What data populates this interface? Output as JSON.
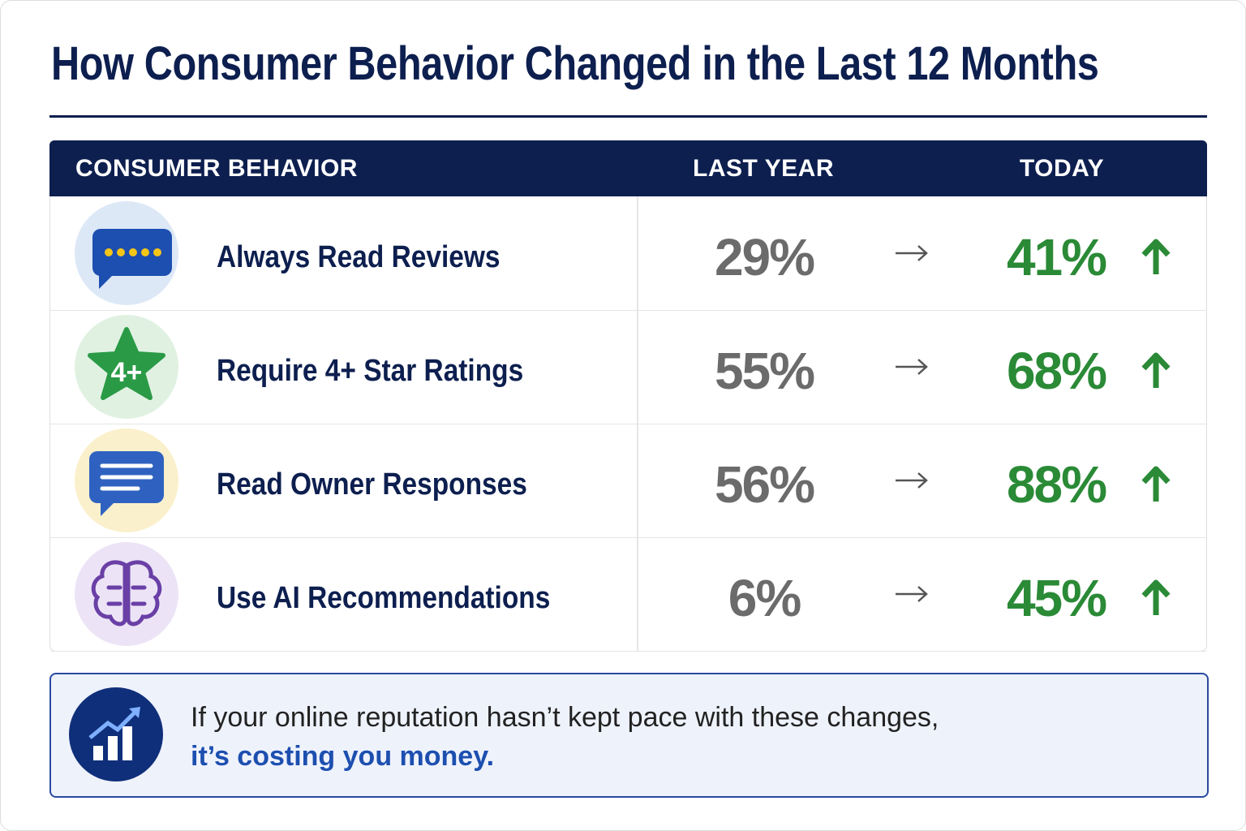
{
  "header": {
    "title": "How Consumer Behavior Changed in the Last 12 Months"
  },
  "table": {
    "columns": [
      "CONSUMER BEHAVIOR",
      "LAST YEAR",
      "TODAY"
    ],
    "rows": [
      [
        "Always Read Reviews",
        "29%",
        "41%"
      ],
      [
        "Require 4+ Star Ratings",
        "55%",
        "68%"
      ],
      [
        "Read Owner Responses",
        "56%",
        "88%"
      ],
      [
        "Use AI Recommendations",
        "6%",
        "45%"
      ]
    ]
  },
  "icons": {
    "star_badge": "4+"
  },
  "footer": {
    "line1": "If your online reputation hasn’t kept pace with these changes,",
    "line2": "it’s costing you money."
  }
}
